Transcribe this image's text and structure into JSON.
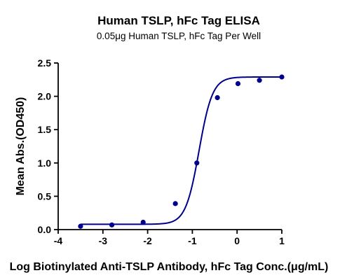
{
  "chart_data": {
    "type": "scatter",
    "title": "Human TSLP, hFc Tag ELISA",
    "subtitle": "0.05μg Human TSLP, hFc Tag Per Well",
    "xlabel": "Log Biotinylated Anti-TSLP Antibody, hFc Tag Conc.(μg/mL)",
    "ylabel": "Mean Abs.(OD450)",
    "xlim": [
      -4,
      1
    ],
    "ylim": [
      0,
      2.5
    ],
    "x_ticks": [
      -4,
      -3,
      -2,
      -1,
      0,
      1
    ],
    "x_tick_labels": [
      "-4",
      "-3",
      "-2",
      "-1",
      "0",
      "1"
    ],
    "y_ticks": [
      0,
      0.5,
      1.0,
      1.5,
      2.0,
      2.5
    ],
    "y_tick_labels": [
      "0.0",
      "0.5",
      "1.0",
      "1.5",
      "2.0",
      "2.5"
    ],
    "grid": false,
    "legend": "none",
    "series": [
      {
        "x": [
          -3.5,
          -2.8,
          -2.1,
          -1.38,
          -0.9,
          -0.44,
          0.02,
          0.5,
          1.0
        ],
        "y": [
          0.05,
          0.07,
          0.11,
          0.39,
          1.0,
          1.98,
          2.19,
          2.24,
          2.29
        ],
        "color": "#00008B",
        "fit": "sigmoid"
      }
    ]
  }
}
